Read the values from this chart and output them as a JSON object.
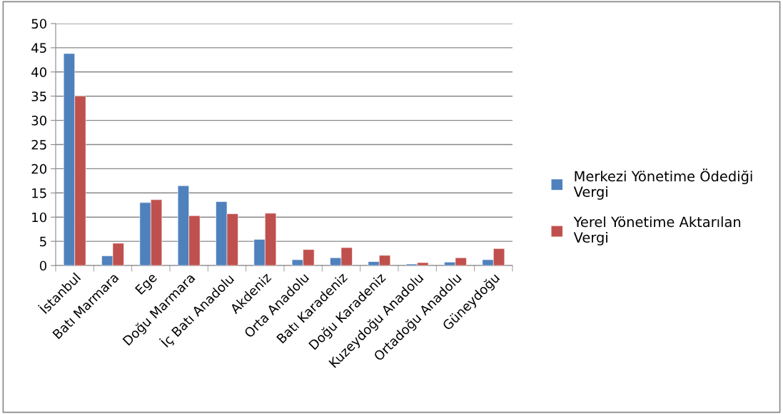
{
  "chart_data": {
    "type": "bar",
    "categories": [
      "İstanbul",
      "Batı Marmara",
      "Ege",
      "Doğu Marmara",
      "İç Batı Anadolu",
      "Akdeniz",
      "Orta Anadolu",
      "Batı Karadeniz",
      "Doğu Karadeniz",
      "Kuzeydoğu Anadolu",
      "Ortadoğu Anadolu",
      "Güneydoğu"
    ],
    "series": [
      {
        "name": "Merkezi Yönetime Ödediği Vergi",
        "color": "#4f81bd",
        "values": [
          43.8,
          2.0,
          13.0,
          16.5,
          13.2,
          5.4,
          1.2,
          1.6,
          0.8,
          0.3,
          0.7,
          1.2
        ]
      },
      {
        "name": "Yerel Yönetime Aktarılan Vergi",
        "color": "#c0504d",
        "values": [
          35.0,
          4.6,
          13.6,
          10.3,
          10.7,
          10.8,
          3.3,
          3.7,
          2.1,
          0.6,
          1.6,
          3.5
        ]
      }
    ],
    "ylim": [
      0,
      50
    ],
    "yticks": [
      0,
      5,
      10,
      15,
      20,
      25,
      30,
      35,
      40,
      45,
      50
    ],
    "grid": "y",
    "legend": "right"
  }
}
